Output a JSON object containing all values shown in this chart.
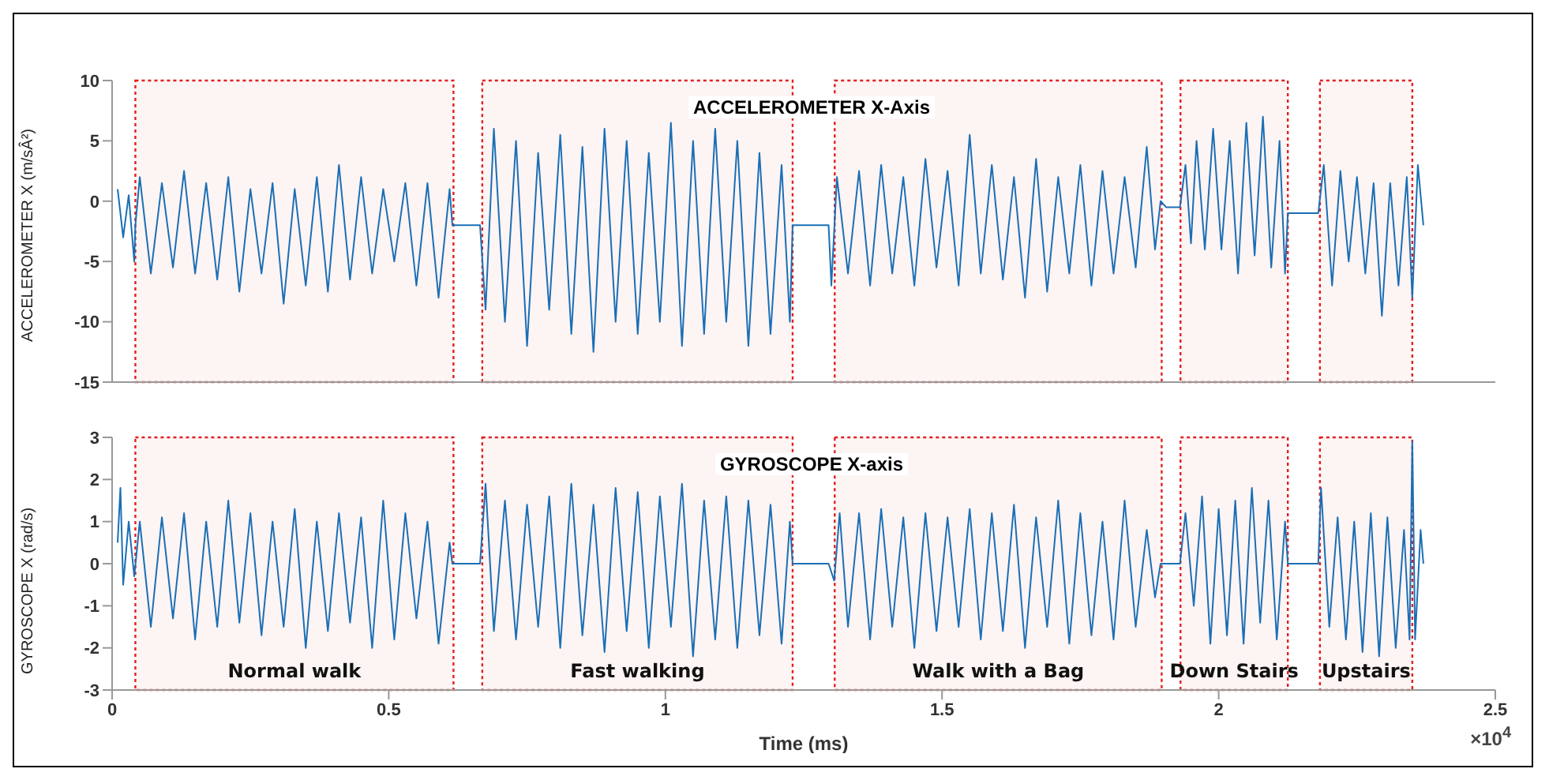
{
  "chart_data": [
    {
      "type": "line",
      "title": "ACCELEROMETER X-Axis",
      "ylabel": "ACCELEROMETER X (m/sÂ²)",
      "tick_labels": "y",
      "xlim": [
        0,
        2.5
      ],
      "xticks": [
        0,
        0.5,
        1,
        1.5,
        2,
        2.5
      ],
      "ylim": [
        -15,
        10
      ],
      "yticks": [
        -15,
        -10,
        -5,
        0,
        5,
        10
      ],
      "bands": [
        {
          "axis": "x",
          "from": 0.042,
          "to": 0.617,
          "color": "#e02020"
        },
        {
          "axis": "x",
          "from": 0.669,
          "to": 1.23,
          "color": "#e02020"
        },
        {
          "axis": "x",
          "from": 1.306,
          "to": 1.897,
          "color": "#e02020"
        },
        {
          "axis": "x",
          "from": 1.931,
          "to": 2.125,
          "color": "#e02020"
        },
        {
          "axis": "x",
          "from": 2.183,
          "to": 2.35,
          "color": "#e02020"
        }
      ],
      "series": [
        {
          "color": "#1a6fb5",
          "x": [
            0.01,
            0.02,
            0.03,
            0.04,
            0.042,
            0.05,
            0.07,
            0.09,
            0.11,
            0.13,
            0.15,
            0.17,
            0.19,
            0.21,
            0.23,
            0.25,
            0.27,
            0.29,
            0.31,
            0.33,
            0.35,
            0.37,
            0.39,
            0.41,
            0.43,
            0.45,
            0.47,
            0.49,
            0.51,
            0.53,
            0.55,
            0.57,
            0.59,
            0.61,
            0.615,
            0.64,
            0.665,
            0.675,
            0.69,
            0.71,
            0.73,
            0.75,
            0.77,
            0.79,
            0.81,
            0.83,
            0.85,
            0.87,
            0.89,
            0.91,
            0.93,
            0.95,
            0.97,
            0.99,
            1.01,
            1.03,
            1.05,
            1.07,
            1.09,
            1.11,
            1.13,
            1.15,
            1.17,
            1.19,
            1.21,
            1.225,
            1.23,
            1.26,
            1.295,
            1.3,
            1.31,
            1.33,
            1.35,
            1.37,
            1.39,
            1.41,
            1.43,
            1.45,
            1.47,
            1.49,
            1.51,
            1.53,
            1.55,
            1.57,
            1.59,
            1.61,
            1.63,
            1.65,
            1.67,
            1.69,
            1.71,
            1.73,
            1.75,
            1.77,
            1.79,
            1.81,
            1.83,
            1.85,
            1.87,
            1.885,
            1.895,
            1.905,
            1.93,
            1.94,
            1.95,
            1.96,
            1.975,
            1.99,
            2.005,
            2.02,
            2.035,
            2.05,
            2.065,
            2.08,
            2.095,
            2.11,
            2.12,
            2.125,
            2.15,
            2.18,
            2.19,
            2.205,
            2.22,
            2.235,
            2.25,
            2.265,
            2.28,
            2.295,
            2.31,
            2.325,
            2.34,
            2.35,
            2.36,
            2.37
          ],
          "values": [
            1,
            -3,
            0.5,
            -5,
            -2,
            2,
            -6,
            1.5,
            -5.5,
            2.5,
            -6,
            1.5,
            -6.5,
            2,
            -7.5,
            1,
            -6,
            1.5,
            -8.5,
            1,
            -7,
            2,
            -7.5,
            3,
            -6.5,
            2,
            -6,
            1,
            -5,
            1.5,
            -7,
            1.5,
            -8,
            1,
            -2,
            -2,
            -2,
            -9,
            6,
            -10,
            5,
            -12,
            4,
            -9,
            5.5,
            -11,
            4.5,
            -12.5,
            6,
            -10,
            5,
            -11,
            4,
            -10,
            6.5,
            -12,
            5,
            -11,
            6,
            -10,
            5,
            -12,
            4,
            -11,
            3,
            -10,
            -2,
            -2,
            -2,
            -7,
            2,
            -6,
            2.5,
            -7,
            3,
            -6,
            2,
            -7,
            3.5,
            -5.5,
            2.5,
            -7,
            5.5,
            -6,
            3,
            -6.5,
            2,
            -8,
            3.5,
            -7.5,
            2,
            -6,
            3,
            -7,
            2.5,
            -6,
            2,
            -5.5,
            4.5,
            -4,
            0,
            -0.5,
            -0.5,
            3,
            -3.5,
            5,
            -4,
            6,
            -4,
            5,
            -6,
            6.5,
            -4.5,
            7,
            -5.5,
            5,
            -6,
            -1,
            -1,
            -1,
            3,
            -7,
            2.5,
            -5,
            2,
            -6,
            1.5,
            -9.5,
            1.5,
            -7,
            2,
            -8,
            3,
            -2
          ]
        }
      ]
    },
    {
      "type": "line",
      "title": "GYROSCOPE X-axis",
      "ylabel": "GYROSCOPE X (rad/s)",
      "xlabel": "Time (ms)",
      "annotations": [
        "×10$^{4}$"
      ],
      "xlim": [
        0,
        2.5
      ],
      "xticks": [
        0,
        0.5,
        1,
        1.5,
        2,
        2.5
      ],
      "ylim": [
        -3,
        3
      ],
      "yticks": [
        -3,
        -2,
        -1,
        0,
        1,
        2,
        3
      ],
      "bands": [
        {
          "axis": "x",
          "from": 0.042,
          "to": 0.617,
          "label": "Normal walk",
          "color": "#e02020"
        },
        {
          "axis": "x",
          "from": 0.669,
          "to": 1.23,
          "label": "Fast walking",
          "color": "#e02020"
        },
        {
          "axis": "x",
          "from": 1.306,
          "to": 1.897,
          "label": "Walk with a Bag",
          "color": "#e02020"
        },
        {
          "axis": "x",
          "from": 1.931,
          "to": 2.125,
          "label": "Down Stairs",
          "color": "#e02020"
        },
        {
          "axis": "x",
          "from": 2.183,
          "to": 2.35,
          "label": "Upstairs",
          "color": "#e02020"
        }
      ],
      "series": [
        {
          "color": "#1a6fb5",
          "x": [
            0.01,
            0.015,
            0.02,
            0.03,
            0.04,
            0.05,
            0.07,
            0.09,
            0.11,
            0.13,
            0.15,
            0.17,
            0.19,
            0.21,
            0.23,
            0.25,
            0.27,
            0.29,
            0.31,
            0.33,
            0.35,
            0.37,
            0.39,
            0.41,
            0.43,
            0.45,
            0.47,
            0.49,
            0.51,
            0.53,
            0.55,
            0.57,
            0.59,
            0.61,
            0.615,
            0.665,
            0.675,
            0.69,
            0.71,
            0.73,
            0.75,
            0.77,
            0.79,
            0.81,
            0.83,
            0.85,
            0.87,
            0.89,
            0.91,
            0.93,
            0.95,
            0.97,
            0.99,
            1.01,
            1.03,
            1.05,
            1.07,
            1.09,
            1.11,
            1.13,
            1.15,
            1.17,
            1.19,
            1.21,
            1.225,
            1.23,
            1.295,
            1.305,
            1.315,
            1.33,
            1.35,
            1.37,
            1.39,
            1.41,
            1.43,
            1.45,
            1.47,
            1.49,
            1.51,
            1.53,
            1.55,
            1.57,
            1.59,
            1.61,
            1.63,
            1.65,
            1.67,
            1.69,
            1.71,
            1.73,
            1.75,
            1.77,
            1.79,
            1.81,
            1.83,
            1.85,
            1.87,
            1.885,
            1.895,
            1.93,
            1.94,
            1.955,
            1.97,
            1.985,
            2,
            2.015,
            2.03,
            2.045,
            2.06,
            2.075,
            2.09,
            2.105,
            2.12,
            2.125,
            2.18,
            2.185,
            2.2,
            2.215,
            2.23,
            2.245,
            2.26,
            2.275,
            2.29,
            2.305,
            2.32,
            2.335,
            2.345,
            2.35,
            2.355,
            2.365,
            2.37
          ],
          "values": [
            0.5,
            1.8,
            -0.5,
            1,
            -0.3,
            1,
            -1.5,
            1.1,
            -1.3,
            1.2,
            -1.8,
            1,
            -1.5,
            1.5,
            -1.4,
            1.2,
            -1.7,
            1,
            -1.5,
            1.3,
            -2,
            1,
            -1.6,
            1.2,
            -1.4,
            1.1,
            -2,
            1.5,
            -1.8,
            1.2,
            -1.3,
            1,
            -1.9,
            0.5,
            0,
            0,
            1.9,
            -1.6,
            1.5,
            -1.8,
            1.4,
            -1.5,
            1.6,
            -2,
            1.9,
            -1.7,
            1.4,
            -2.1,
            1.8,
            -1.6,
            1.7,
            -2,
            1.6,
            -1.5,
            1.9,
            -2.2,
            1.5,
            -1.8,
            1.6,
            -2,
            1.5,
            -1.7,
            1.4,
            -1.9,
            1,
            0,
            0,
            -0.4,
            1.2,
            -1.5,
            1.2,
            -1.8,
            1.3,
            -1.5,
            1.1,
            -2,
            1.2,
            -1.6,
            1.1,
            -1.5,
            1.3,
            -1.8,
            1.2,
            -1.6,
            1.4,
            -2,
            1.1,
            -1.5,
            1.5,
            -1.9,
            1.2,
            -1.7,
            1,
            -1.8,
            1.5,
            -1.5,
            0.8,
            -0.8,
            0,
            0,
            1.2,
            -1,
            1.6,
            -1.9,
            1.3,
            -1.7,
            1.5,
            -1.9,
            1.8,
            -1.4,
            1.5,
            -1.8,
            1,
            0,
            0,
            1.8,
            -1.5,
            1.1,
            -1.8,
            1,
            -2.1,
            1.2,
            -2.2,
            1.1,
            -2,
            0.8,
            -1.8,
            2.9,
            -1.8,
            0.8,
            0
          ]
        }
      ]
    }
  ]
}
